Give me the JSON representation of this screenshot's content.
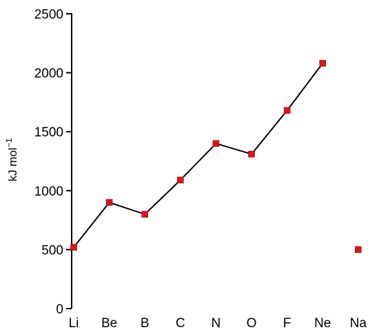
{
  "chart_data": {
    "type": "line",
    "ylabel": "kJ mol",
    "ylabel_sup": "−1",
    "categories": [
      "Li",
      "Be",
      "B",
      "C",
      "N",
      "O",
      "F",
      "Ne",
      "Na"
    ],
    "series": [
      {
        "values": [
          520,
          900,
          800,
          1090,
          1400,
          1310,
          1680,
          2080,
          500
        ]
      }
    ],
    "ylim": [
      0,
      2500
    ],
    "yticks": [
      0,
      500,
      1000,
      1500,
      2000,
      2500
    ],
    "grid": false,
    "colors": {
      "marker": "#e4121b",
      "line": "#000000"
    }
  }
}
